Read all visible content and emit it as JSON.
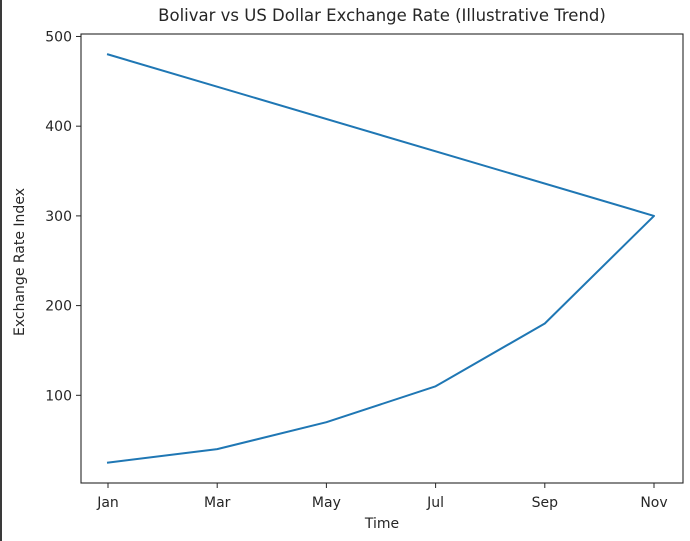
{
  "chart_data": {
    "type": "line",
    "title": "Bolivar vs US Dollar Exchange Rate (Illustrative Trend)",
    "xlabel": "Time",
    "ylabel": "Exchange Rate Index",
    "categories": [
      "Jan",
      "Mar",
      "May",
      "Jul",
      "Sep",
      "Nov"
    ],
    "x": [
      "Jan",
      "Mar",
      "May",
      "Jul",
      "Sep",
      "Nov",
      "Jan"
    ],
    "series": [
      {
        "name": "Exchange Rate Index",
        "color": "#1f77b4",
        "x": [
          "Jan",
          "Mar",
          "May",
          "Jul",
          "Sep",
          "Nov",
          "Jan"
        ],
        "values": [
          25,
          40,
          70,
          110,
          180,
          300,
          480
        ]
      }
    ],
    "yticks": [
      100,
      200,
      300,
      400,
      500
    ],
    "ylim": [
      2.25,
      502.75
    ],
    "grid": false,
    "legend": null
  },
  "page": {
    "title": "Bolivar vs US Dollar Exchange Rate (Illustrative Trend)",
    "xlabel": "Time",
    "ylabel": "Exchange Rate Index"
  }
}
